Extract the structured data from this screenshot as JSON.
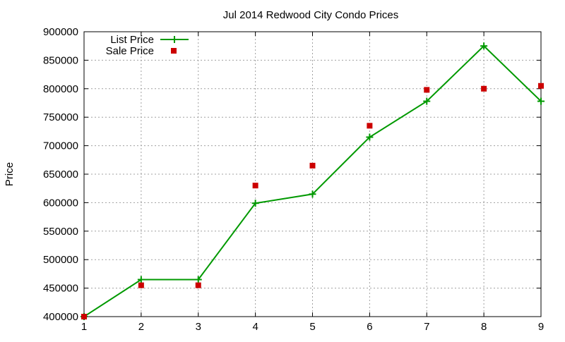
{
  "chart_data": {
    "type": "line",
    "title": "Jul 2014 Redwood City Condo Prices",
    "xlabel": "",
    "ylabel": "Price",
    "x": [
      1,
      2,
      3,
      4,
      5,
      6,
      7,
      8,
      9
    ],
    "xlim": [
      1,
      9
    ],
    "ylim": [
      400000,
      900000
    ],
    "xticks": [
      "1",
      "2",
      "3",
      "4",
      "5",
      "6",
      "7",
      "8",
      "9"
    ],
    "yticks": [
      "400000",
      "450000",
      "500000",
      "550000",
      "600000",
      "650000",
      "700000",
      "750000",
      "800000",
      "850000",
      "900000"
    ],
    "grid": true,
    "legend_position": "top-left",
    "series": [
      {
        "name": "List Price",
        "style": "line-with-plus-markers",
        "color": "#009900",
        "values": [
          400000,
          465000,
          465000,
          599000,
          615000,
          715000,
          778000,
          875000,
          778000
        ]
      },
      {
        "name": "Sale Price",
        "style": "square-markers",
        "color": "#cc0000",
        "values": [
          400000,
          455000,
          455000,
          630000,
          665000,
          735000,
          798000,
          800000,
          805000
        ]
      }
    ]
  }
}
